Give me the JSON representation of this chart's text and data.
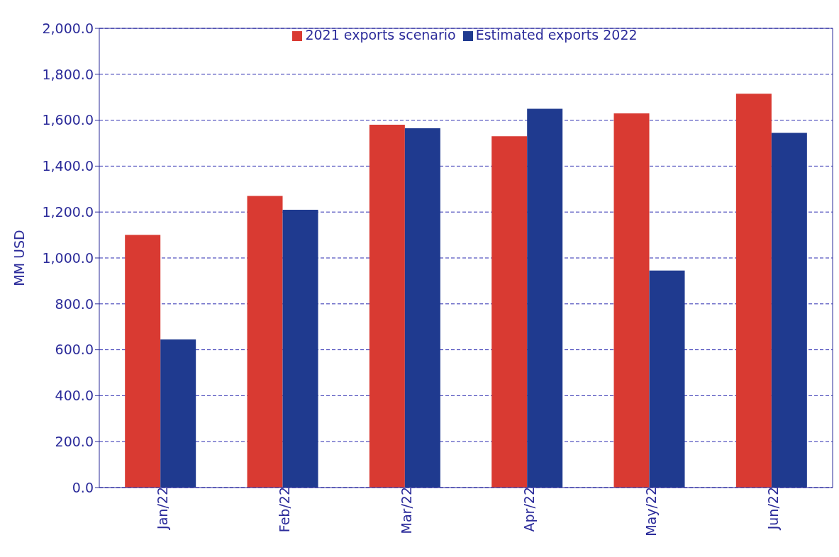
{
  "chart_data": {
    "type": "bar",
    "ylabel": "MM USD",
    "categories": [
      "Jan/22",
      "Feb/22",
      "Mar/22",
      "Apr/22",
      "May/22",
      "Jun/22"
    ],
    "series": [
      {
        "name": "2021 exports scenario",
        "color": "#d93a32",
        "values": [
          1100,
          1270,
          1580,
          1530,
          1630,
          1715
        ]
      },
      {
        "name": "Estimated exports 2022",
        "color": "#1f3a8f",
        "values": [
          645,
          1210,
          1565,
          1650,
          945,
          1545
        ]
      }
    ],
    "ylim": [
      0,
      2000
    ],
    "yticks": [
      {
        "value": 0,
        "label": "0.0"
      },
      {
        "value": 200,
        "label": "200.0"
      },
      {
        "value": 400,
        "label": "400.0"
      },
      {
        "value": 600,
        "label": "600.0"
      },
      {
        "value": 800,
        "label": "800.0"
      },
      {
        "value": 1000,
        "label": "1,000.0"
      },
      {
        "value": 1200,
        "label": "1,200.0"
      },
      {
        "value": 1400,
        "label": "1,400.0"
      },
      {
        "value": 1600,
        "label": "1,600.0"
      },
      {
        "value": 1800,
        "label": "1,800.0"
      },
      {
        "value": 2000,
        "label": "2,000.0"
      }
    ],
    "grid": "y",
    "legend": "top"
  }
}
